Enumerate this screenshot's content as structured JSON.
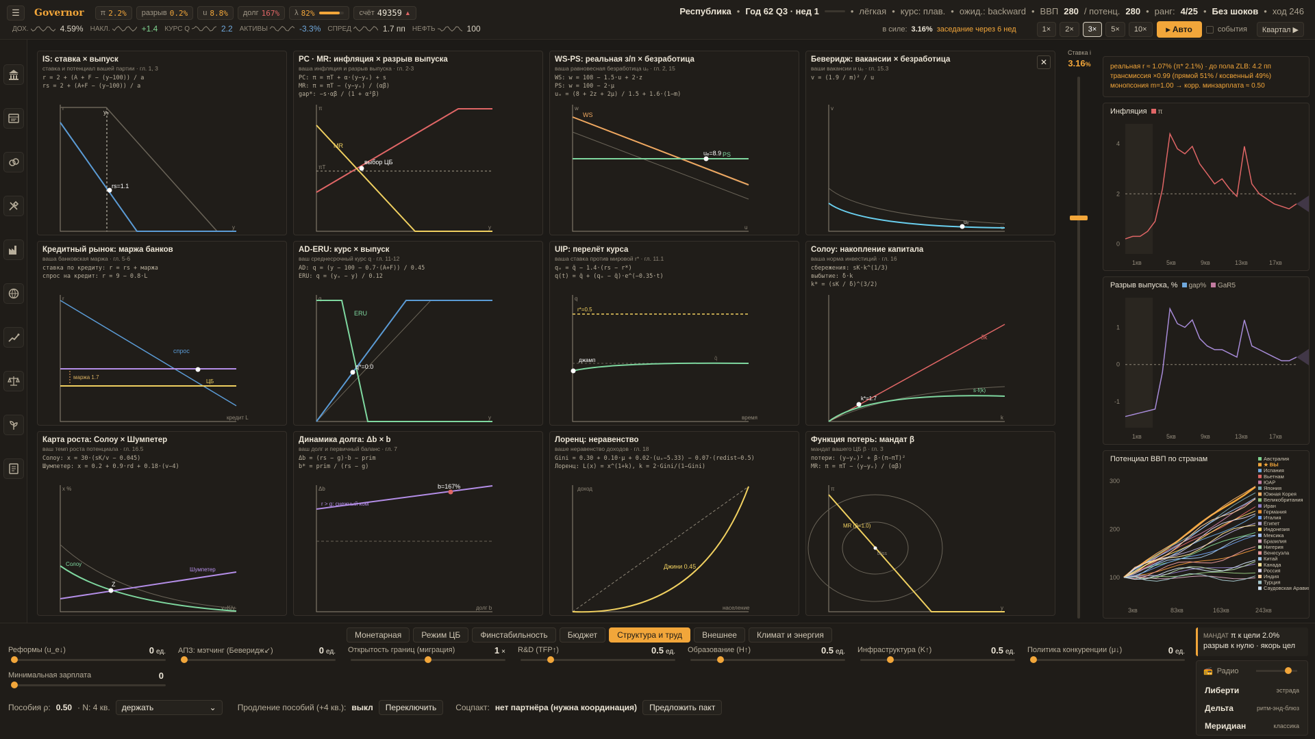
{
  "header": {
    "menu_icon": "hamburger-icon",
    "brand": "Governor",
    "chips": {
      "inflation_label": "π",
      "inflation_value": "2.2%",
      "gap_label": "разрыв",
      "gap_value": "0.2%",
      "unemp_label": "u",
      "unemp_value": "8.8%",
      "debt_label": "долг",
      "debt_value": "167%",
      "lambda_label": "λ",
      "lambda_value": "82%",
      "lambda_fill": 0.82,
      "score_label": "счёт",
      "score_value": "49359",
      "score_arrow": "▲"
    },
    "indicators": [
      {
        "label": "ДОХ.",
        "value": "4.59%",
        "color": "#d9d2c3"
      },
      {
        "label": "НАКЛ.",
        "value": "+1.4",
        "color": "#7fd28f"
      },
      {
        "label": "КУРС Q",
        "value": "2.2",
        "color": "#6fa8dc"
      },
      {
        "label": "АКТИВЫ",
        "value": "-3.3%",
        "color": "#6fa8dc"
      },
      {
        "label": "СПРЕД",
        "value": "1.7 пп",
        "color": "#d9d2c3"
      },
      {
        "label": "НЕФТЬ",
        "value": "100",
        "color": "#d9d2c3"
      }
    ],
    "status": {
      "country": "Республика",
      "year": "Год 62 Q3 · нед 1",
      "difficulty": "лёгкая",
      "fx": "курс: плав.",
      "expect": "ожид.: backward",
      "gdp_label": "ВВП",
      "gdp": "280",
      "potential_label": "/ потенц.",
      "potential": "280",
      "rank_label": "ранг:",
      "rank": "4/25",
      "shocks": "Без шоков",
      "move": "ход 246"
    },
    "policy_in_force_label": "в силе:",
    "policy_in_force": "3.16%",
    "next_meeting": "заседание через 6 нед",
    "speeds": [
      "1×",
      "2×",
      "3×",
      "5×",
      "10×"
    ],
    "active_speed": "3×",
    "auto_label": "▸ Авто",
    "events_label": "события",
    "period_label": "Квартал ▶"
  },
  "panels": [
    {
      "title": "IS: ставка × выпуск",
      "sub": "ставка и потенциал вашей партии · гл. 1, 3",
      "f1": "r = 2 + (A + F − (y−100)) / a",
      "f2": "rs = 2 + (A+F − (y−100)) / a",
      "f3": "",
      "labels": {
        "axis_y": "r",
        "axis_x": "y",
        "point": "rs=1.1",
        "ye": "yₑ"
      }
    },
    {
      "title": "PC · MR: инфляция × разрыв выпуска",
      "sub": "ваша инфляция и разрыв выпуска · гл. 2-3",
      "f1": "PC: π = πT + α·(y−yₑ) + s",
      "f2": "MR: π = πT − (y−yₑ) / (αβ)",
      "f3": "gap*: −s·αβ / (1 + α²β)",
      "labels": {
        "axis_y": "π",
        "axis_x": "y",
        "mr": "MR",
        "pt": "πT",
        "choice": "выбор ЦБ"
      }
    },
    {
      "title": "WS-PS: реальная з/п × безработица",
      "sub": "ваша равновесная безработица uₑ · гл. 2, 15",
      "f1": "WS: w = 108 − 1.5·u + 2·z",
      "f2": "PS: w = 100 − 2·μ",
      "f3": "uₑ = (8 + 2z + 2μ) / 1.5 + 1.6·(1−m)",
      "labels": {
        "axis_y": "w",
        "axis_x": "u",
        "ws": "WS",
        "ps": "PS",
        "ue": "uₑ=8.9"
      }
    },
    {
      "title": "Беверидж: вакансии × безработица",
      "sub": "ваши вакансии и uₑ · гл. 15.3",
      "f1": "v = (1.9 / m)² / u",
      "f2": "",
      "f3": "",
      "labels": {
        "axis_y": "v",
        "axis_x": "u",
        "ue": "uₑ"
      }
    },
    {
      "title": "Кредитный рынок: маржа банков",
      "sub": "ваша банковская маржа · гл. 5-6",
      "f1": "ставка по кредиту: r = rs + маржа",
      "f2": "спрос на кредит: r = 9 − 0.8·L",
      "f3": "",
      "labels": {
        "axis_y": "r",
        "axis_x": "кредит L",
        "demand": "спрос",
        "cb": "ЦБ",
        "margin": "маржа 1.7"
      }
    },
    {
      "title": "AD-ERU: курс × выпуск",
      "sub": "ваш среднесрочный курс q · гл. 11-12",
      "f1": "AD: q = (y − 100 − 0.7·(A+F)) / 0.45",
      "f2": "ERU: q = (yₑ − y) / 0.12",
      "f3": "",
      "labels": {
        "axis_y": "q",
        "axis_x": "y",
        "eru": "ERU",
        "q": "q*=0.0"
      }
    },
    {
      "title": "UIP: перелёт курса",
      "sub": "ваша ставка против мировой r* · гл. 11.1",
      "f1": "qₑ = q̄ − 1.4·(rs − r*)",
      "f2": "q(t) = q̄ + (qₑ − q̄)·e^(−0.35·t)",
      "f3": "",
      "labels": {
        "axis_y": "q",
        "axis_x": "время",
        "rstar": "r*=0.5",
        "jump": "джамп",
        "qbar": "q̄"
      }
    },
    {
      "title": "Солоу: накопление капитала",
      "sub": "ваша норма инвестиций · гл. 16",
      "f1": "сбережения: sK·k^(1/3)",
      "f2": "выбытие: δ·k",
      "f3": "k* = (sK / δ)^(3/2)",
      "labels": {
        "axis_x": "k",
        "dk": "δk",
        "sfk": "s·f(k)",
        "kstar": "k*=1.7"
      }
    },
    {
      "title": "Карта роста: Солоу × Шумпетер",
      "sub": "ваш темп роста потенциала · гл. 16.5",
      "f1": "Солоу: x = 30·(sK/v − 0.045)",
      "f2": "Шумпетер: x = 0.2 + 0.9·rd + 0.18·(v−4)",
      "f3": "",
      "labels": {
        "axis_y": "x %",
        "axis_x": "v=K/y",
        "solow": "Солоу",
        "schump": "Шумпетер",
        "z": "Z"
      }
    },
    {
      "title": "Динамика долга: Δb × b",
      "sub": "ваш долг и первичный баланс · гл. 7",
      "f1": "Δb = (rs − g)·b − prim",
      "f2": "b* = prim / (rs − g)",
      "f3": "",
      "labels": {
        "axis_y": "Δb",
        "axis_x": "долг b",
        "snow": "r > g: снежный ком",
        "b": "b=167%"
      }
    },
    {
      "title": "Лоренц: неравенство",
      "sub": "ваше неравенство доходов · гл. 18",
      "f1": "Gini = 0.30 + 0.10·μ + 0.02·(uₑ−5.33) − 0.07·(redist−0.5)",
      "f2": "Лоренц: L(x) = x^(1+k), k = 2·Gini/(1−Gini)",
      "f3": "",
      "labels": {
        "axis_y": "доход",
        "axis_x": "население",
        "gini": "Джини 0.45"
      }
    },
    {
      "title": "Функция потерь: мандат β",
      "sub": "мандат вашего ЦБ β · гл. 3",
      "f1": "потери: (y−yₑ)² + β·(π−πT)²",
      "f2": "MR: π = πT − (y−yₑ) / (αβ)",
      "f3": "",
      "labels": {
        "axis_y": "π",
        "axis_x": "y",
        "mr": "MR (β=1.0)",
        "bliss": "bliss"
      }
    }
  ],
  "close_icon": "close-icon",
  "rate_slider": {
    "label": "Ставка i",
    "value": "3.16",
    "unit": "%",
    "level": 0.74
  },
  "right": {
    "info1": "реальная r ≈ 1.07% (π* 2.1%) · до пола ZLB: 4.2 пп",
    "info2": "трансмиссия ×0.99 (прямой 51% / косвенный 49%)",
    "info3": "монопсония m=1.00 → корр. минзарплата ≈ 0.50",
    "infl_title": "Инфляция",
    "infl_legend": "π",
    "infl_y_ticks": [
      "4",
      "2",
      "0"
    ],
    "gap_title": "Разрыв выпуска, %",
    "gap_legend1": "gap%",
    "gap_legend2": "GaR5",
    "gap_y_ticks": [
      "1",
      "0",
      "-1"
    ],
    "x_ticks": [
      "1кв",
      "5кв",
      "9кв",
      "13кв",
      "17кв"
    ],
    "pot_title": "Потенциал ВВП по странам",
    "pot_y_ticks": [
      "300",
      "200",
      "100"
    ],
    "pot_x_ticks": [
      "3кв",
      "83кв",
      "163кв",
      "243кв"
    ],
    "countries": [
      "Австралия",
      "★ ВЫ",
      "Испания",
      "Вьетнам",
      "ЮАР",
      "Япония",
      "Южная Корея",
      "Великобритания",
      "Иран",
      "Германия",
      "Италия",
      "Египет",
      "Индонезия",
      "Мексика",
      "Бразилия",
      "Нигерия",
      "Венесуэла",
      "Китай",
      "Канада",
      "Россия",
      "Индия",
      "Турция",
      "Саудовская Аравия"
    ],
    "country_colors": [
      "#7fd28f",
      "#f2a63a",
      "#6fa8dc",
      "#e06666",
      "#c27ba0",
      "#76a5af",
      "#f6b26b",
      "#93c47d",
      "#8e7cc3",
      "#e69138",
      "#6d9eeb",
      "#b4a7d6",
      "#ffd966",
      "#a4c2f4",
      "#d5a6bd",
      "#b6d7a8",
      "#ea9999",
      "#9fc5e8",
      "#ffe599",
      "#d9d2e9",
      "#f9cb9c",
      "#a2c4c9",
      "#cfe2f3"
    ]
  },
  "chart_data": [
    {
      "type": "line",
      "title": "Инфляция",
      "series": [
        {
          "name": "π",
          "values": [
            0.2,
            0.3,
            0.3,
            0.5,
            0.9,
            2.2,
            4.4,
            3.8,
            3.6,
            3.9,
            3.2,
            2.8,
            2.4,
            2.6,
            2.2,
            1.9,
            3.9,
            2.4,
            2.0,
            1.8,
            1.6,
            1.5,
            1.4,
            1.6
          ]
        }
      ],
      "ylim": [
        0,
        4.8
      ]
    },
    {
      "type": "line",
      "title": "Разрыв выпуска, %",
      "series": [
        {
          "name": "gap%",
          "values": [
            -1.4,
            -1.35,
            -1.3,
            -1.25,
            -1.2,
            -0.2,
            1.5,
            1.1,
            1.0,
            1.2,
            0.7,
            0.5,
            0.4,
            0.4,
            0.3,
            0.2,
            1.2,
            0.5,
            0.4,
            0.3,
            0.2,
            0.1,
            0.1,
            0.2
          ]
        }
      ],
      "ylim": [
        -1.7,
        1.8
      ]
    },
    {
      "type": "line",
      "title": "Потенциал ВВП по странам",
      "series": [
        {
          "name": "★ ВЫ",
          "values": [
            100,
            150,
            200,
            250,
            290
          ]
        }
      ],
      "ylim": [
        50,
        320
      ]
    }
  ],
  "bottom": {
    "tabs": [
      "Монетарная",
      "Режим ЦБ",
      "Финстабильность",
      "Бюджет",
      "Структура и труд",
      "Внешнее",
      "Климат и энергия"
    ],
    "active_tab": "Структура и труд",
    "controls": [
      {
        "label": "Реформы (u_e↓)",
        "value": "0",
        "unit": "ед.",
        "level": 0
      },
      {
        "label": "АПЗ: мэтчинг (Беверидж↙)",
        "value": "0",
        "unit": "ед.",
        "level": 0
      },
      {
        "label": "Открытость границ (миграция)",
        "value": "1",
        "unit": "×",
        "level": 0.5
      },
      {
        "label": "R&D (TFP↑)",
        "value": "0.5",
        "unit": "ед.",
        "level": 0.18
      },
      {
        "label": "Образование (H↑)",
        "value": "0.5",
        "unit": "ед.",
        "level": 0.18
      },
      {
        "label": "Инфраструктура (K↑)",
        "value": "0.5",
        "unit": "ед.",
        "level": 0.18
      },
      {
        "label": "Политика конкуренции (μ↓)",
        "value": "0",
        "unit": "ед.",
        "level": 0
      },
      {
        "label": "Минимальная зарплата",
        "value": "0",
        "unit": "",
        "level": 0
      }
    ],
    "benefits_label": "Пособия ρ:",
    "benefits_value": "0.50",
    "n_label": "· N: 4 кв.",
    "select_value": "держать",
    "extension_label": "Продление пособий (+4 кв.):",
    "extension_value": "выкл",
    "toggle_label": "Переключить",
    "pact_label": "Соцпакт:",
    "pact_value": "нет партнёра (нужна координация)",
    "pact_button": "Предложить пакт",
    "mandate_title": "МАНДАТ",
    "mandate_line1": "π к цели 2.0%",
    "mandate_line2": "разрыв к нулю · якорь цел",
    "radio_label": "Радио",
    "stations": [
      {
        "name": "Либерти",
        "genre": "эстрада"
      },
      {
        "name": "Дельта",
        "genre": "ритм-энд-блюз"
      },
      {
        "name": "Меридиан",
        "genre": "классика"
      }
    ]
  }
}
